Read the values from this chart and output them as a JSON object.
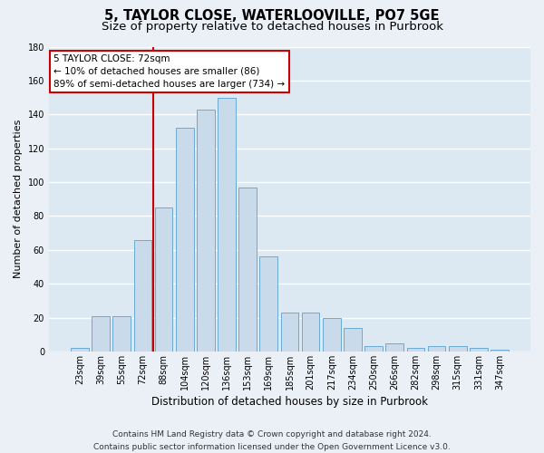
{
  "title_line1": "5, TAYLOR CLOSE, WATERLOOVILLE, PO7 5GE",
  "title_line2": "Size of property relative to detached houses in Purbrook",
  "xlabel": "Distribution of detached houses by size in Purbrook",
  "ylabel": "Number of detached properties",
  "footnote_line1": "Contains HM Land Registry data © Crown copyright and database right 2024.",
  "footnote_line2": "Contains public sector information licensed under the Open Government Licence v3.0.",
  "categories": [
    "23sqm",
    "39sqm",
    "55sqm",
    "72sqm",
    "88sqm",
    "104sqm",
    "120sqm",
    "136sqm",
    "153sqm",
    "169sqm",
    "185sqm",
    "201sqm",
    "217sqm",
    "234sqm",
    "250sqm",
    "266sqm",
    "282sqm",
    "298sqm",
    "315sqm",
    "331sqm",
    "347sqm"
  ],
  "values": [
    2,
    21,
    21,
    66,
    85,
    132,
    143,
    150,
    97,
    56,
    23,
    23,
    20,
    14,
    3,
    5,
    2,
    3,
    3,
    2,
    1
  ],
  "bar_color": "#c9daea",
  "bar_edge_color": "#6aaad4",
  "highlight_line_index": 3,
  "highlight_label": "5 TAYLOR CLOSE: 72sqm",
  "annotation_line1": "← 10% of detached houses are smaller (86)",
  "annotation_line2": "89% of semi-detached houses are larger (734) →",
  "annotation_box_facecolor": "#ffffff",
  "annotation_box_edgecolor": "#cc0000",
  "highlight_line_color": "#cc0000",
  "ylim": [
    0,
    180
  ],
  "yticks": [
    0,
    20,
    40,
    60,
    80,
    100,
    120,
    140,
    160,
    180
  ],
  "plot_bg_color": "#dce8f2",
  "fig_bg_color": "#eaf0f6",
  "grid_color": "#ffffff",
  "title_fontsize": 10.5,
  "subtitle_fontsize": 9.5,
  "xlabel_fontsize": 8.5,
  "ylabel_fontsize": 8,
  "tick_fontsize": 7,
  "annotation_fontsize": 7.5,
  "footnote_fontsize": 6.5
}
